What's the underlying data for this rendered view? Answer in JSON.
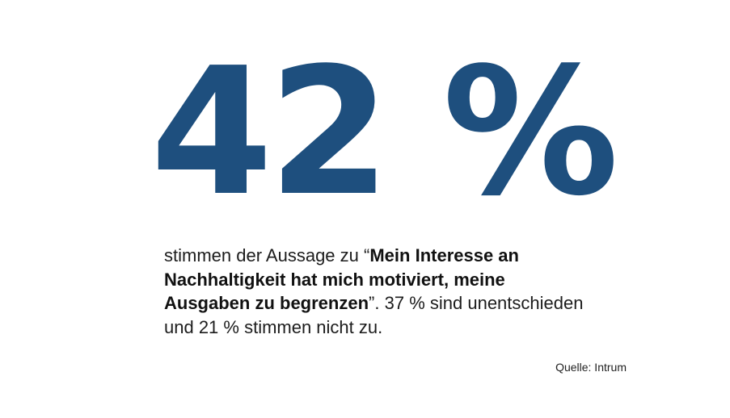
{
  "headline": {
    "value": "42 %",
    "color": "#1e4f7e"
  },
  "statement": {
    "lead": "stimmen der Aussage zu",
    "open_quote": "“",
    "quote": "Mein Interesse an Nachhaltigkeit hat mich motiviert, meine Ausgaben zu begrenzen",
    "close_quote": "”.",
    "rest": "37 % sind unentschieden und 21 % stimmen nicht zu."
  },
  "source": {
    "label": "Quelle: Intrum"
  }
}
